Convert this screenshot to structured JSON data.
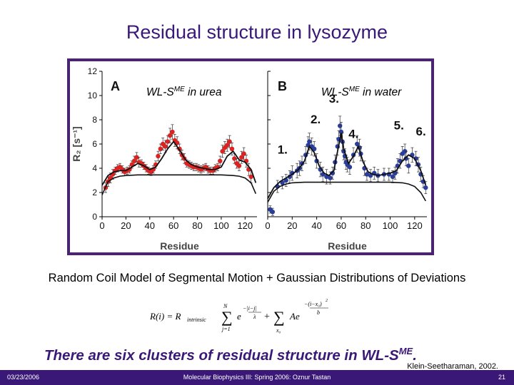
{
  "slide": {
    "title": "Residual structure in lysozyme",
    "subtitle": "Random Coil Model of Segmental Motion + Gaussian Distributions of Deviations",
    "conclusion_main": "There are six clusters of residual structure in WL-S",
    "conclusion_sup": "ME",
    "conclusion_end": ".",
    "citation": "Klein-Seetharaman, 2002.",
    "footer": {
      "date": "03/23/2006",
      "course": "Molecular Biophysics III: Spring 2006: Oznur Tastan",
      "page": "21"
    }
  },
  "formula": {
    "lhs": "R(i) = R",
    "lhs_sub": "intrinsic",
    "sum1_top": "N",
    "sum1_bottom": "j=1",
    "exp1": "−|i−j|",
    "exp1_den": "λ",
    "plus": "+",
    "term2": "Ae",
    "sum2_bottom": "x₀",
    "exp2": "−(i−x₀)",
    "exp2_pow": "2",
    "exp2_den": "b",
    "e": "e",
    "sigma": "∑"
  },
  "chart_data": [
    {
      "type": "scatter",
      "panel_label": "A",
      "annotation": "WL-S",
      "annotation_sup": "ME",
      "annotation_end": "  in urea",
      "ylabel": "R₂ [s⁻¹]",
      "xlabel": "Residue",
      "xlim": [
        0,
        130
      ],
      "ylim": [
        0,
        12
      ],
      "xticks": [
        0,
        20,
        40,
        60,
        80,
        100,
        120
      ],
      "yticks": [
        0,
        2,
        4,
        6,
        8,
        10,
        12
      ],
      "colors": {
        "data": "#dd2222",
        "fit": "#111111",
        "baseline": "#111111"
      },
      "series": [
        {
          "role": "measured",
          "x": [
            3,
            5,
            7,
            9,
            11,
            13,
            15,
            17,
            19,
            21,
            23,
            25,
            27,
            29,
            31,
            33,
            35,
            37,
            39,
            41,
            43,
            45,
            47,
            49,
            51,
            53,
            55,
            57,
            59,
            61,
            63,
            65,
            67,
            69,
            71,
            73,
            75,
            77,
            79,
            81,
            83,
            85,
            87,
            89,
            91,
            93,
            95,
            97,
            99,
            101,
            103,
            105,
            107,
            109,
            111,
            113,
            115,
            117,
            119,
            121,
            123,
            125
          ],
          "y": [
            2.4,
            2.9,
            3.2,
            3.5,
            3.8,
            4.0,
            4.1,
            3.9,
            3.7,
            3.8,
            3.9,
            4.3,
            4.6,
            4.9,
            4.5,
            4.4,
            4.2,
            4.0,
            3.8,
            3.7,
            3.9,
            4.3,
            5.0,
            5.6,
            6.0,
            5.8,
            6.2,
            6.7,
            7.0,
            6.3,
            6.1,
            5.6,
            5.1,
            4.8,
            4.4,
            4.3,
            4.2,
            4.1,
            4.1,
            4.0,
            3.9,
            4.0,
            4.1,
            3.9,
            3.8,
            3.8,
            4.0,
            4.1,
            4.6,
            5.4,
            5.7,
            5.9,
            6.2,
            5.6,
            4.8,
            4.4,
            4.2,
            4.9,
            5.2,
            4.6,
            3.9,
            3.3
          ],
          "err": [
            0.4,
            0.4,
            0.4,
            0.4,
            0.3,
            0.3,
            0.3,
            0.3,
            0.3,
            0.3,
            0.3,
            0.3,
            0.4,
            0.4,
            0.4,
            0.3,
            0.3,
            0.3,
            0.3,
            0.3,
            0.3,
            0.3,
            0.4,
            0.4,
            0.5,
            0.5,
            0.5,
            0.6,
            0.6,
            0.5,
            0.5,
            0.4,
            0.4,
            0.4,
            0.3,
            0.3,
            0.3,
            0.3,
            0.3,
            0.3,
            0.3,
            0.3,
            0.3,
            0.3,
            0.3,
            0.3,
            0.3,
            0.3,
            0.4,
            0.5,
            0.5,
            0.5,
            0.5,
            0.5,
            0.4,
            0.4,
            0.4,
            0.5,
            0.5,
            0.5,
            0.5,
            0.5
          ]
        },
        {
          "role": "fit",
          "x": [
            0,
            5,
            10,
            15,
            20,
            25,
            30,
            35,
            40,
            45,
            50,
            55,
            60,
            65,
            70,
            75,
            80,
            85,
            90,
            95,
            100,
            105,
            110,
            115,
            120,
            125,
            129
          ],
          "y": [
            2.6,
            3.4,
            3.7,
            3.8,
            3.8,
            4.1,
            4.4,
            4.2,
            3.9,
            4.1,
            4.8,
            5.6,
            6.2,
            5.5,
            4.7,
            4.3,
            4.1,
            4.0,
            3.9,
            3.9,
            4.1,
            5.0,
            5.4,
            4.7,
            4.5,
            3.9,
            2.8
          ]
        },
        {
          "role": "baseline",
          "x": [
            0,
            5,
            10,
            15,
            20,
            30,
            40,
            50,
            60,
            70,
            80,
            90,
            100,
            110,
            115,
            120,
            125,
            129
          ],
          "y": [
            1.8,
            2.9,
            3.2,
            3.35,
            3.4,
            3.45,
            3.45,
            3.45,
            3.45,
            3.45,
            3.45,
            3.45,
            3.45,
            3.4,
            3.35,
            3.2,
            2.8,
            1.9
          ]
        }
      ]
    },
    {
      "type": "scatter",
      "panel_label": "B",
      "annotation": "WL-S",
      "annotation_sup": "ME",
      "annotation_end": " in water",
      "xlabel": "Residue",
      "xlim": [
        0,
        130
      ],
      "ylim": [
        0,
        12
      ],
      "xticks": [
        0,
        20,
        40,
        60,
        80,
        100,
        120
      ],
      "cluster_labels": [
        {
          "label": "1.",
          "x": 8,
          "y": 5.2
        },
        {
          "label": "2.",
          "x": 35,
          "y": 7.7
        },
        {
          "label": "3.",
          "x": 50,
          "y": 9.4
        },
        {
          "label": "4.",
          "x": 66,
          "y": 6.5
        },
        {
          "label": "5.",
          "x": 103,
          "y": 7.2
        },
        {
          "label": "6.",
          "x": 121,
          "y": 6.7
        }
      ],
      "colors": {
        "data": "#2a3d9a",
        "fit": "#111111",
        "baseline": "#111111"
      },
      "series": [
        {
          "role": "measured",
          "x": [
            2,
            4,
            8,
            12,
            15,
            18,
            20,
            24,
            26,
            28,
            31,
            33,
            34,
            36,
            38,
            40,
            43,
            45,
            48,
            51,
            53,
            55,
            57,
            58,
            59,
            60,
            61,
            62,
            63,
            64,
            65,
            67,
            70,
            73,
            75,
            76,
            79,
            81,
            84,
            87,
            90,
            95,
            99,
            102,
            104,
            106,
            108,
            110,
            112,
            113,
            115,
            118,
            121,
            123,
            125,
            127,
            129
          ],
          "y": [
            0.6,
            0.4,
            2.5,
            2.8,
            3.0,
            3.3,
            3.6,
            3.8,
            4.0,
            4.4,
            5.1,
            5.9,
            6.2,
            5.8,
            5.6,
            4.6,
            3.9,
            3.5,
            3.3,
            3.2,
            3.6,
            4.5,
            5.8,
            6.4,
            7.5,
            7.0,
            6.2,
            5.4,
            5.0,
            4.5,
            4.3,
            4.1,
            5.1,
            6.0,
            5.7,
            5.2,
            4.0,
            3.5,
            3.4,
            3.6,
            3.4,
            3.5,
            3.5,
            3.3,
            3.6,
            4.2,
            4.6,
            5.2,
            5.4,
            4.8,
            4.2,
            5.1,
            4.8,
            4.3,
            3.5,
            2.9,
            2.4
          ],
          "err": [
            0.3,
            0.3,
            0.5,
            0.5,
            0.5,
            0.5,
            0.6,
            0.6,
            0.6,
            0.6,
            0.7,
            0.7,
            0.7,
            0.7,
            0.6,
            0.6,
            0.6,
            0.6,
            0.6,
            0.5,
            0.5,
            0.6,
            0.7,
            0.7,
            0.8,
            0.8,
            0.7,
            0.7,
            0.6,
            0.6,
            0.6,
            0.6,
            0.6,
            0.7,
            0.7,
            0.6,
            0.6,
            0.5,
            0.5,
            0.5,
            0.5,
            0.5,
            0.5,
            0.5,
            0.5,
            0.6,
            0.6,
            0.6,
            0.6,
            0.6,
            0.6,
            0.6,
            0.6,
            0.6,
            0.6,
            0.5,
            0.5
          ]
        },
        {
          "role": "fit",
          "x": [
            0,
            5,
            10,
            15,
            20,
            25,
            30,
            34,
            38,
            42,
            46,
            50,
            54,
            58,
            60,
            62,
            66,
            70,
            74,
            78,
            82,
            86,
            90,
            95,
            100,
            105,
            110,
            115,
            120,
            125,
            129
          ],
          "y": [
            1.5,
            2.4,
            2.9,
            3.2,
            3.5,
            3.9,
            4.6,
            5.8,
            5.3,
            4.2,
            3.6,
            3.4,
            3.8,
            5.9,
            6.9,
            5.6,
            4.4,
            5.0,
            5.8,
            4.5,
            3.7,
            3.5,
            3.4,
            3.5,
            3.6,
            3.8,
            4.6,
            5.1,
            4.8,
            3.8,
            2.6
          ]
        },
        {
          "role": "baseline",
          "x": [
            0,
            5,
            10,
            15,
            20,
            30,
            40,
            50,
            60,
            70,
            80,
            90,
            100,
            110,
            115,
            120,
            125,
            129
          ],
          "y": [
            1.2,
            2.1,
            2.5,
            2.7,
            2.8,
            2.85,
            2.85,
            2.85,
            2.85,
            2.85,
            2.85,
            2.85,
            2.85,
            2.8,
            2.7,
            2.5,
            2.0,
            1.3
          ]
        }
      ]
    }
  ]
}
